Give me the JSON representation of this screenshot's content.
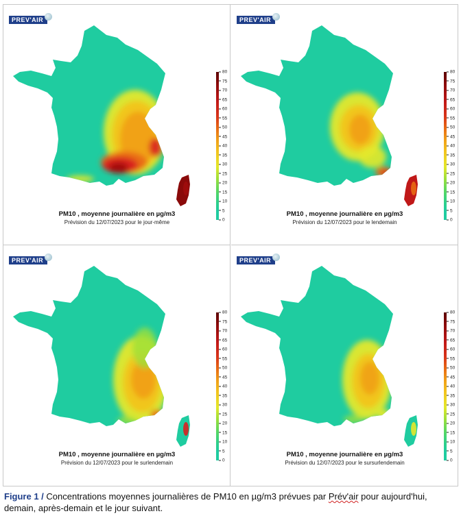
{
  "logo_text": "PREV'AIR",
  "colorbar": {
    "ticks": [
      "80",
      "75",
      "70",
      "65",
      "60",
      "55",
      "50",
      "45",
      "40",
      "35",
      "30",
      "25",
      "20",
      "15",
      "10",
      "5",
      "0"
    ]
  },
  "panels": [
    {
      "title": "PM10 , moyenne journalière en µg/m3",
      "subtitle": "Prévision du 12/07/2023 pour le jour-même"
    },
    {
      "title": "PM10 , moyenne journalière en µg/m3",
      "subtitle": "Prévision du 12/07/2023 pour le lendemain"
    },
    {
      "title": "PM10 , moyenne journalière en µg/m3",
      "subtitle": "Prévision du 12/07/2023 pour le surlendemain"
    },
    {
      "title": "PM10 , moyenne journalière en µg/m3",
      "subtitle": "Prévision du 12/07/2023 pour le sursurlendemain"
    }
  ],
  "caption": {
    "label": "Figure 1 /",
    "text_before": " Concentrations moyennes journalières de PM10 en µg/m3 prévues par ",
    "prevair": "Prév'air",
    "text_after": " pour aujourd'hui, demain, après-demain et le jour suivant."
  },
  "colors": {
    "base": "#1fcca0",
    "yellow": "#e4e82a",
    "orange": "#f2a820",
    "red": "#d82020",
    "darkred": "#8a0a0a"
  }
}
